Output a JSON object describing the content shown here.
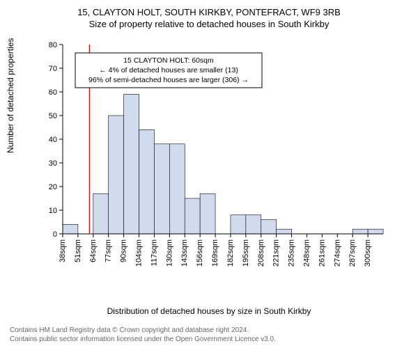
{
  "titles": {
    "line1": "15, CLAYTON HOLT, SOUTH KIRKBY, PONTEFRACT, WF9 3RB",
    "line2": "Size of property relative to detached houses in South Kirkby"
  },
  "ylabel": "Number of detached properties",
  "xlabel": "Distribution of detached houses by size in South Kirkby",
  "chart": {
    "type": "histogram",
    "ylim": [
      0,
      80
    ],
    "ytick_step": 10,
    "xticks": [
      "38sqm",
      "51sqm",
      "64sqm",
      "77sqm",
      "90sqm",
      "104sqm",
      "117sqm",
      "130sqm",
      "143sqm",
      "156sqm",
      "169sqm",
      "182sqm",
      "195sqm",
      "208sqm",
      "221sqm",
      "235sqm",
      "248sqm",
      "261sqm",
      "274sqm",
      "287sqm",
      "300sqm"
    ],
    "bar_values": [
      4,
      0,
      17,
      50,
      59,
      44,
      38,
      38,
      15,
      17,
      0,
      8,
      8,
      6,
      2,
      0,
      0,
      0,
      0,
      2,
      2
    ],
    "bar_fill": "#d1dbee",
    "bar_stroke": "#000000",
    "axis_color": "#000000",
    "background": "#ffffff",
    "marker_x_index": 1.75,
    "marker_color": "#cc0000",
    "title_fontsize": 13,
    "label_fontsize": 12,
    "tick_fontsize": 11,
    "annotation": {
      "lines": [
        "15 CLAYTON HOLT: 60sqm",
        "← 4% of detached houses are smaller (13)",
        "96% of semi-detached houses are larger (306) →"
      ],
      "box_stroke": "#000000",
      "box_fill": "#ffffff",
      "font_size": 10.5
    }
  },
  "footer": {
    "line1": "Contains HM Land Registry data © Crown copyright and database right 2024.",
    "line2": "Contains public sector information licensed under the Open Government Licence v3.0."
  }
}
